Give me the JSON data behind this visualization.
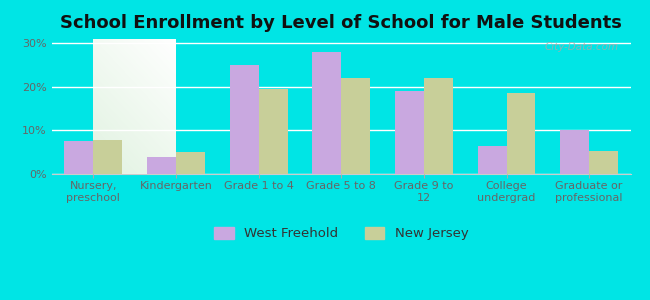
{
  "title": "School Enrollment by Level of School for Male Students",
  "categories": [
    "Nursery,\npreschool",
    "Kindergarten",
    "Grade 1 to 4",
    "Grade 5 to 8",
    "Grade 9 to\n12",
    "College\nundergrad",
    "Graduate or\nprofessional"
  ],
  "west_freehold": [
    7.5,
    4.0,
    25.0,
    28.0,
    19.0,
    6.5,
    10.0
  ],
  "new_jersey": [
    7.8,
    5.0,
    19.5,
    22.0,
    22.0,
    18.5,
    5.2
  ],
  "bar_color_wf": "#c9a8e0",
  "bar_color_nj": "#c8cf99",
  "background_outer": "#00e5e5",
  "background_plot_top": "#f5f5f0",
  "background_plot_bottom": "#d4e8cc",
  "yticks": [
    0,
    10,
    20,
    30
  ],
  "ylim": [
    0,
    31
  ],
  "bar_width": 0.35,
  "legend_label_wf": "West Freehold",
  "legend_label_nj": "New Jersey",
  "title_fontsize": 13,
  "tick_fontsize": 8,
  "legend_fontsize": 9.5
}
